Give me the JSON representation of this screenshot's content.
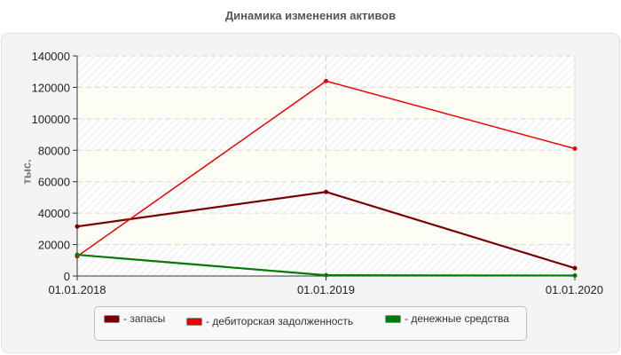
{
  "chart_data": {
    "type": "line",
    "title": "Динамика изменения активов",
    "xlabel": "",
    "ylabel": "тыс.",
    "x": [
      "01.01.2018",
      "01.01.2019",
      "01.01.2020"
    ],
    "ylim": [
      0,
      140000
    ],
    "yticks": [
      0,
      20000,
      40000,
      60000,
      80000,
      100000,
      120000,
      140000
    ],
    "grid": true,
    "legend_position": "bottom",
    "series": [
      {
        "name": "запасы",
        "color": "#7a0000",
        "values": [
          31500,
          53500,
          5000
        ]
      },
      {
        "name": "дебиторская задолженность",
        "color": "#ee0000",
        "values": [
          12500,
          124000,
          81000
        ]
      },
      {
        "name": "денежные средства",
        "color": "#007a00",
        "values": [
          13500,
          500,
          300
        ]
      }
    ]
  },
  "header": {
    "title": "Динамика изменения активов"
  },
  "axis": {
    "y_label": "тыс.",
    "y_ticks": [
      "0",
      "20000",
      "40000",
      "60000",
      "80000",
      "100000",
      "120000",
      "140000"
    ],
    "x_ticks": [
      "01.01.2018",
      "01.01.2019",
      "01.01.2020"
    ]
  },
  "legend": {
    "items": [
      {
        "label": "- запасы",
        "color": "#7a0000"
      },
      {
        "label": "- дебиторская задолженность",
        "color": "#ee0000"
      },
      {
        "label": "- денежные средства",
        "color": "#007a00"
      }
    ]
  }
}
